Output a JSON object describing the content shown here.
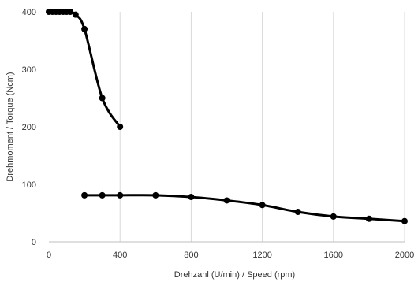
{
  "chart_data": {
    "type": "scatter",
    "title": "",
    "xlabel": "Drehzahl (U/min) / Speed (rpm)",
    "ylabel": "Drehmoment / Torque (Ncm)",
    "xlim": [
      0,
      2000
    ],
    "ylim": [
      0,
      400
    ],
    "xticks": [
      0,
      400,
      800,
      1200,
      1600,
      2000
    ],
    "yticks": [
      0,
      100,
      200,
      300,
      400
    ],
    "x_tick_labels": [
      "0",
      "400",
      "800",
      "1200",
      "1600",
      "2000"
    ],
    "y_tick_labels": [
      "0",
      "100",
      "200",
      "300",
      "400"
    ],
    "grid": {
      "vertical": true,
      "horizontal": false
    },
    "legend": "none",
    "line_color": "#000000",
    "series": [
      {
        "x": [
          0,
          20,
          40,
          60,
          80,
          100,
          120,
          150,
          200,
          300,
          400
        ],
        "y": [
          400,
          400,
          400,
          400,
          400,
          400,
          400,
          395,
          370,
          250,
          200
        ]
      },
      {
        "x": [
          200,
          300,
          400,
          600,
          800,
          1000,
          1200,
          1400,
          1600,
          1800,
          2000
        ],
        "y": [
          81,
          81,
          81,
          81,
          78,
          72,
          64,
          52,
          44,
          40,
          36
        ]
      }
    ]
  }
}
